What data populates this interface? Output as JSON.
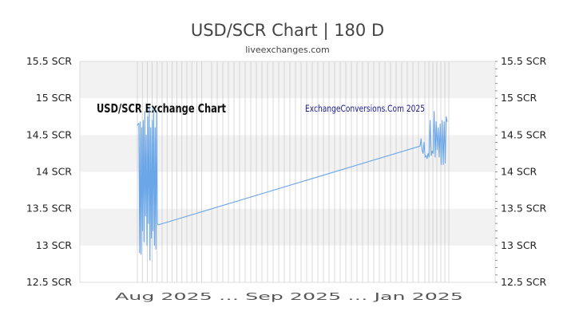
{
  "chart_data": {
    "type": "line",
    "title": "USD/SCR Chart | 180 D",
    "subtitle": "liveexchanges.com",
    "watermark_left": "USD/SCR Exchange Chart",
    "watermark_right": "ExchangeConversions.Com 2025",
    "ylabel": "",
    "xlabel": "",
    "ylim": [
      12.5,
      15.5
    ],
    "y_ticks": [
      12.5,
      13,
      13.5,
      14,
      14.5,
      15,
      15.5
    ],
    "y_tick_labels": [
      "12.5 SCR",
      "13 SCR",
      "13.5 SCR",
      "14 SCR",
      "14.5 SCR",
      "15 SCR",
      "15.5 SCR"
    ],
    "x_tick_text": "Aug 2025 … Sep 2025 … Jan 2025",
    "grid": true,
    "series": [
      {
        "values": [
          14.63,
          14.65,
          14.66,
          12.9,
          14.68,
          12.88,
          14.6,
          13.2,
          14.7,
          13.05,
          14.82,
          13.4,
          14.5,
          13.0,
          14.75,
          13.3,
          14.88,
          12.8,
          14.6,
          13.1,
          14.7,
          13.2,
          14.85,
          13.0,
          14.6,
          12.95,
          14.8,
          13.3,
          13.28,
          14.35,
          14.45,
          14.3,
          14.25,
          14.4,
          14.2,
          14.22,
          14.18,
          14.25,
          14.2,
          14.7,
          14.22,
          14.28,
          14.25,
          14.82,
          14.2,
          14.68,
          14.3,
          14.6,
          14.2,
          14.65,
          14.1,
          14.7,
          14.1,
          14.68,
          14.12,
          14.75,
          14.68
        ]
      }
    ]
  },
  "colors": {
    "line": "#6aa6e8",
    "band": "#f2f2f2",
    "axis_text": "#222222",
    "title_text": "#444444",
    "watermark_right": "#1e1e8c",
    "grid_vertical": "#c8c8c8"
  }
}
